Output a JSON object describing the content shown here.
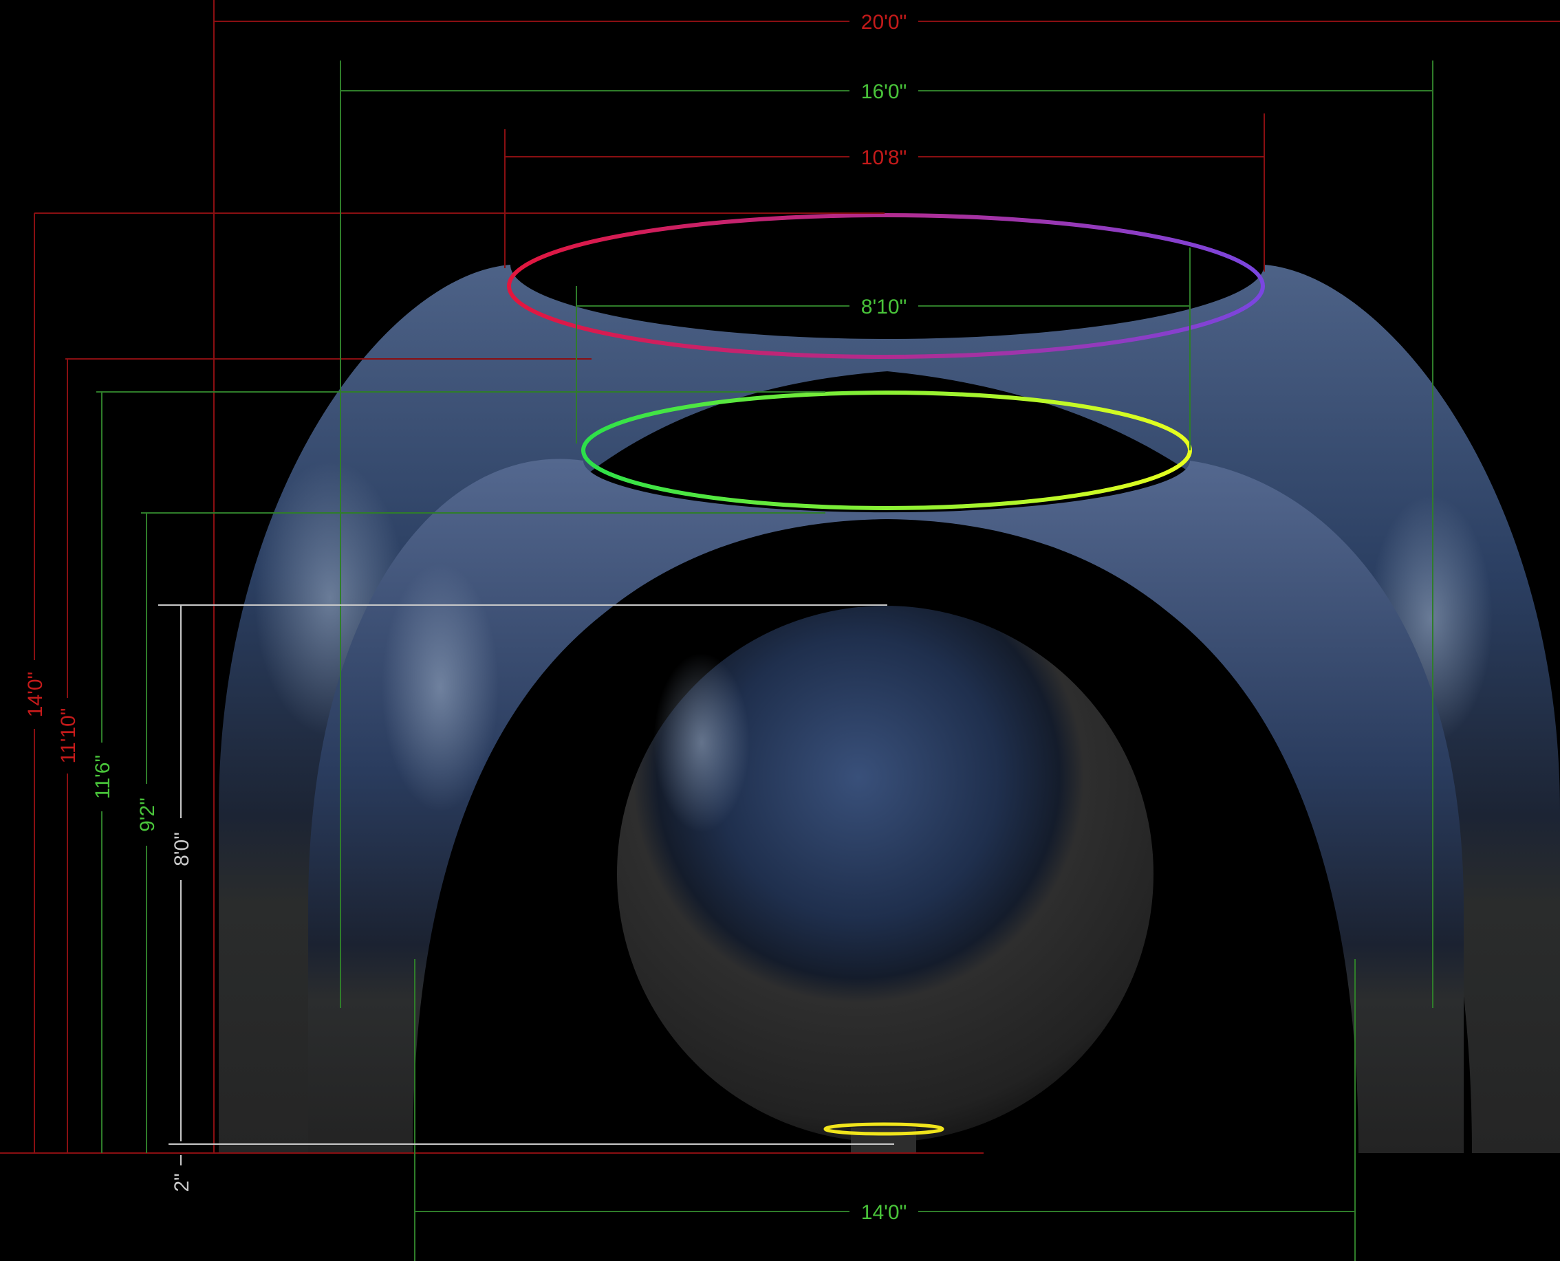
{
  "colors": {
    "background": "#000000",
    "red_dimension": "#8a0f12",
    "red_text": "#c41a1a",
    "green_dimension": "#2f7d2a",
    "green_text": "#49c43a",
    "white_dimension": "#c9c9c9",
    "outer_ring_gradient": [
      "#e3163d",
      "#b22c8f",
      "#7a46e0"
    ],
    "middle_ring_gradient": [
      "#2ce14a",
      "#e8ff1e"
    ],
    "base_ring": "#f1e51c"
  },
  "dimensions": {
    "overall_width": "20'0\"",
    "outer_shell_width": "16'0\"",
    "outer_opening": "10'8\"",
    "middle_opening": "8'10\"",
    "base_span": "14'0\"",
    "overall_height": "14'0\"",
    "outer_height": "11'10\"",
    "middle_height": "11'6\"",
    "inner_height": "9'2\"",
    "sphere_height": "8'0\"",
    "base_clearance": "2\""
  }
}
